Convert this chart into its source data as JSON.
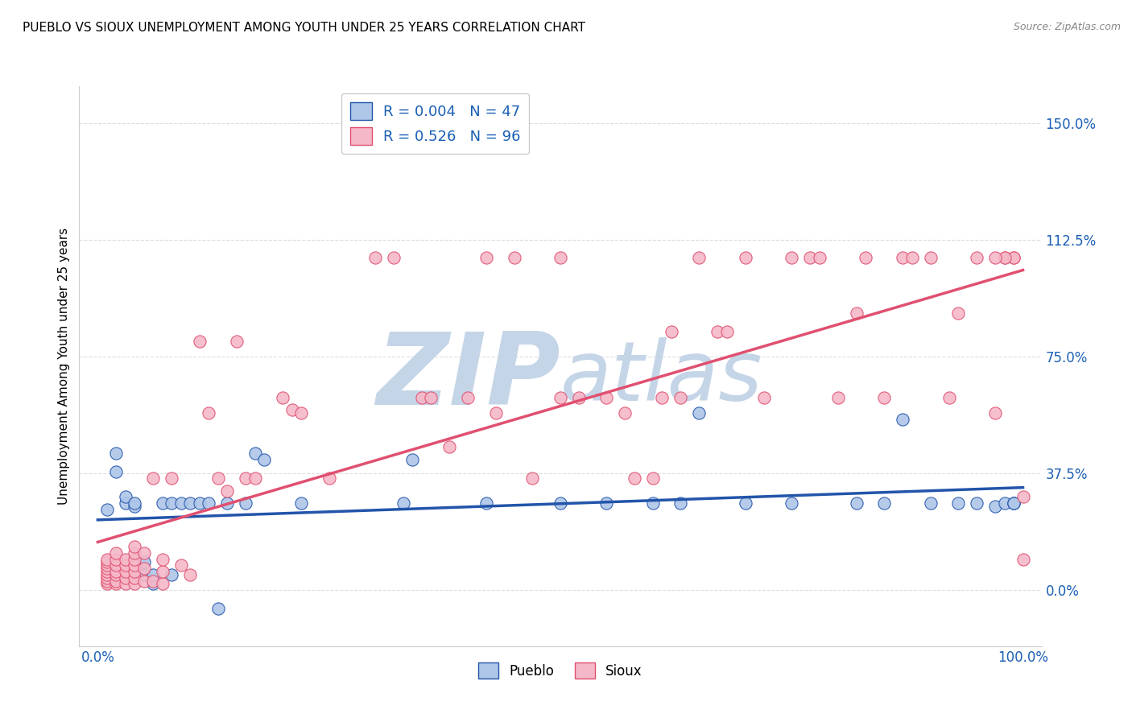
{
  "title": "PUEBLO VS SIOUX UNEMPLOYMENT AMONG YOUTH UNDER 25 YEARS CORRELATION CHART",
  "source": "Source: ZipAtlas.com",
  "ylabel": "Unemployment Among Youth under 25 years",
  "xlim": [
    -0.02,
    1.02
  ],
  "ylim": [
    -0.18,
    1.62
  ],
  "yticks": [
    0.0,
    0.375,
    0.75,
    1.125,
    1.5
  ],
  "ytick_labels": [
    "0.0%",
    "37.5%",
    "75.0%",
    "112.5%",
    "150.0%"
  ],
  "xticks": [
    0.0,
    1.0
  ],
  "xtick_labels": [
    "0.0%",
    "100.0%"
  ],
  "pueblo_R": 0.004,
  "pueblo_N": 47,
  "sioux_R": 0.526,
  "sioux_N": 96,
  "pueblo_color": "#aec6e8",
  "sioux_color": "#f5b8c8",
  "pueblo_line_color": "#2255aa",
  "sioux_line_color": "#e05070",
  "pueblo_x": [
    0.01,
    0.02,
    0.02,
    0.03,
    0.03,
    0.03,
    0.04,
    0.04,
    0.04,
    0.05,
    0.05,
    0.06,
    0.06,
    0.07,
    0.08,
    0.08,
    0.09,
    0.1,
    0.11,
    0.12,
    0.13,
    0.14,
    0.16,
    0.17,
    0.18,
    0.22,
    0.33,
    0.34,
    0.42,
    0.5,
    0.55,
    0.6,
    0.63,
    0.65,
    0.7,
    0.75,
    0.82,
    0.85,
    0.87,
    0.9,
    0.93,
    0.95,
    0.97,
    0.98,
    0.99,
    0.99,
    0.99
  ],
  "pueblo_y": [
    0.26,
    0.38,
    0.44,
    0.28,
    0.3,
    0.05,
    0.07,
    0.27,
    0.28,
    0.05,
    0.09,
    0.02,
    0.05,
    0.28,
    0.28,
    0.05,
    0.28,
    0.28,
    0.28,
    0.28,
    -0.06,
    0.28,
    0.28,
    0.44,
    0.42,
    0.28,
    0.28,
    0.42,
    0.28,
    0.28,
    0.28,
    0.28,
    0.28,
    0.57,
    0.28,
    0.28,
    0.28,
    0.28,
    0.55,
    0.28,
    0.28,
    0.28,
    0.27,
    0.28,
    0.28,
    0.28,
    0.28
  ],
  "sioux_x": [
    0.01,
    0.01,
    0.01,
    0.01,
    0.01,
    0.01,
    0.01,
    0.01,
    0.01,
    0.02,
    0.02,
    0.02,
    0.02,
    0.02,
    0.02,
    0.02,
    0.03,
    0.03,
    0.03,
    0.03,
    0.03,
    0.04,
    0.04,
    0.04,
    0.04,
    0.04,
    0.04,
    0.04,
    0.05,
    0.05,
    0.05,
    0.06,
    0.06,
    0.07,
    0.07,
    0.07,
    0.08,
    0.09,
    0.1,
    0.11,
    0.12,
    0.13,
    0.14,
    0.15,
    0.16,
    0.17,
    0.2,
    0.21,
    0.22,
    0.25,
    0.3,
    0.32,
    0.35,
    0.36,
    0.38,
    0.4,
    0.42,
    0.43,
    0.45,
    0.47,
    0.5,
    0.5,
    0.52,
    0.55,
    0.57,
    0.58,
    0.6,
    0.61,
    0.62,
    0.63,
    0.65,
    0.67,
    0.68,
    0.7,
    0.72,
    0.75,
    0.77,
    0.78,
    0.8,
    0.82,
    0.83,
    0.85,
    0.87,
    0.88,
    0.9,
    0.92,
    0.93,
    0.95,
    0.97,
    0.98,
    0.99,
    1.0,
    1.0,
    0.99,
    0.98,
    0.97
  ],
  "sioux_y": [
    0.02,
    0.03,
    0.04,
    0.05,
    0.06,
    0.07,
    0.08,
    0.09,
    0.1,
    0.02,
    0.03,
    0.05,
    0.06,
    0.08,
    0.1,
    0.12,
    0.02,
    0.04,
    0.06,
    0.08,
    0.1,
    0.02,
    0.04,
    0.06,
    0.08,
    0.1,
    0.12,
    0.14,
    0.03,
    0.07,
    0.12,
    0.03,
    0.36,
    0.02,
    0.06,
    0.1,
    0.36,
    0.08,
    0.05,
    0.8,
    0.57,
    0.36,
    0.32,
    0.8,
    0.36,
    0.36,
    0.62,
    0.58,
    0.57,
    0.36,
    1.07,
    1.07,
    0.62,
    0.62,
    0.46,
    0.62,
    1.07,
    0.57,
    1.07,
    0.36,
    0.62,
    1.07,
    0.62,
    0.62,
    0.57,
    0.36,
    0.36,
    0.62,
    0.83,
    0.62,
    1.07,
    0.83,
    0.83,
    1.07,
    0.62,
    1.07,
    1.07,
    1.07,
    0.62,
    0.89,
    1.07,
    0.62,
    1.07,
    1.07,
    1.07,
    0.62,
    0.89,
    1.07,
    0.57,
    1.07,
    1.07,
    0.3,
    0.1,
    1.07,
    1.07,
    1.07
  ],
  "watermark_zip": "ZIP",
  "watermark_atlas": "atlas",
  "watermark_color_zip": "#c5d5e8",
  "watermark_color_atlas": "#c5d5e8",
  "background_color": "#ffffff",
  "grid_color": "#dddddd"
}
